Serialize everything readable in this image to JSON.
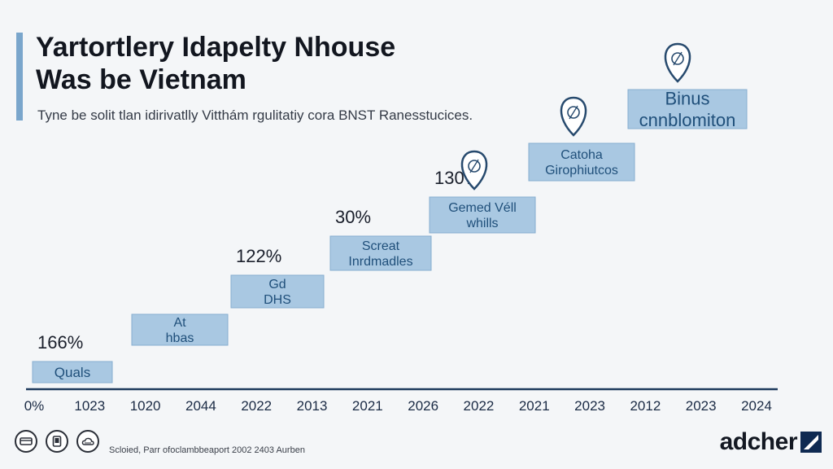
{
  "header": {
    "title_line1": "Yartortlery Idapelty Nhouse",
    "title_line2": "Was be Vietnam",
    "subtitle": "Tyne be solit tlan idirivatlly Vitthám rgulitatiy cora BNST Ranesstucices."
  },
  "colors": {
    "box_fill": "#a9c8e2",
    "box_stroke": "#86aed0",
    "box_text": "#1f4f7a",
    "axis": "#1d3a5c",
    "pin": "#274a6e",
    "accent": "#7aa6cc"
  },
  "chart_data": {
    "type": "bar",
    "axis_tick_labels": [
      "0%",
      "1023",
      "1020",
      "2044",
      "2022",
      "2013",
      "2021",
      "2026",
      "2022",
      "2021",
      "2023",
      "2012",
      "2023",
      "2024"
    ],
    "steps": [
      {
        "label": "Quals",
        "value_label": "166%",
        "icon": ""
      },
      {
        "label": "At hbas",
        "value_label": "",
        "icon": ""
      },
      {
        "label": "Gd DHS",
        "value_label": "122%",
        "icon": ""
      },
      {
        "label": "Screat Inrdmadles",
        "value_label": "30%",
        "icon": ""
      },
      {
        "label": "Gemed Véll whills",
        "value_label": "130%",
        "icon": "location-pin-icon"
      },
      {
        "label": "Catoha Girophiutcos",
        "value_label": "",
        "icon": "location-pin-icon"
      },
      {
        "label": "Binus cnnblomiton",
        "value_label": "",
        "icon": "location-pin-icon"
      }
    ]
  },
  "footer": {
    "source": "Scloied, Parr ofoclambbeaport 2002 2403 Aurben",
    "icons": [
      "card-icon",
      "tablet-icon",
      "cloud-icon"
    ]
  },
  "brand": {
    "name": "adcher",
    "logo_icon": "slash-logo-icon"
  }
}
